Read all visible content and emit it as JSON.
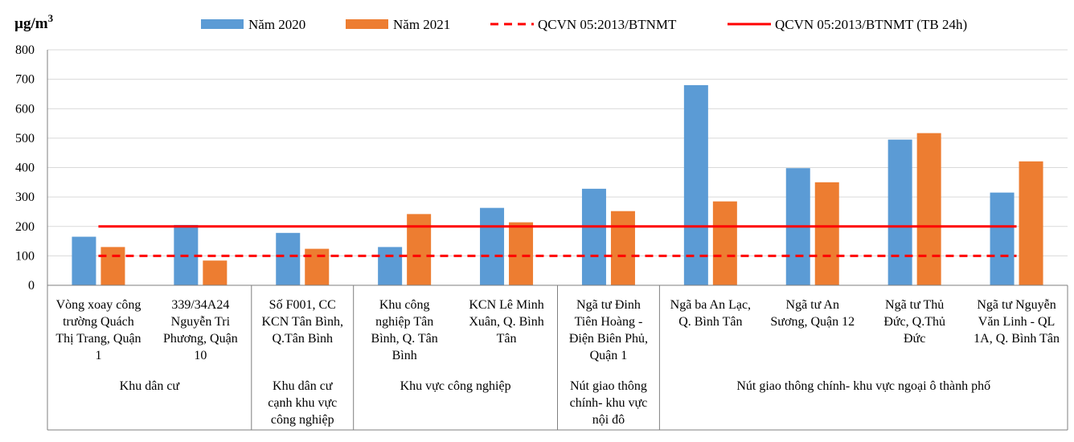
{
  "chart_data": {
    "type": "bar",
    "unit_label": "µg/m",
    "unit_superscript": "3",
    "ylim": [
      0,
      800
    ],
    "yticks": [
      "0",
      "100",
      "200",
      "300",
      "400",
      "500",
      "600",
      "700",
      "800"
    ],
    "grid": true,
    "legend_position": "top",
    "series": [
      {
        "name": "Năm 2020",
        "color": "#5b9bd5",
        "values": [
          165,
          205,
          178,
          130,
          263,
          328,
          680,
          398,
          495,
          315
        ]
      },
      {
        "name": "Năm 2021",
        "color": "#ed7d31",
        "values": [
          130,
          84,
          124,
          242,
          214,
          252,
          285,
          350,
          517,
          421
        ]
      }
    ],
    "reference_lines": [
      {
        "name": "QCVN 05:2013/BTNMT",
        "value": 100,
        "style": "dashed",
        "color": "#ff0000"
      },
      {
        "name": "QCVN 05:2013/BTNMT  (TB 24h)",
        "value": 200,
        "style": "solid",
        "color": "#ff0000"
      }
    ],
    "categories": [
      [
        "Vòng xoay công",
        "trường Quách",
        "Thị Trang, Quận",
        "1"
      ],
      [
        "339/34A24",
        "Nguyễn  Tri",
        "Phương, Quận",
        "10"
      ],
      [
        "Số F001, CC",
        "KCN Tân Bình,",
        "Q.Tân Bình"
      ],
      [
        "Khu công",
        "nghiệp  Tân",
        "Bình, Q. Tân",
        "Bình"
      ],
      [
        "KCN Lê Minh",
        "Xuân, Q. Bình",
        "Tân"
      ],
      [
        "Ngã tư Đinh",
        "Tiên Hoàng -",
        "Điện Biên Phủ,",
        "Quận 1"
      ],
      [
        "Ngã ba An Lạc,",
        "Q. Bình Tân"
      ],
      [
        "Ngã tư An",
        "Sương, Quận 12"
      ],
      [
        "Ngã tư Thủ",
        "Đức, Q.Thủ",
        "Đức"
      ],
      [
        "Ngã tư Nguyễn",
        "Văn Linh  - QL",
        "1A, Q. Bình Tân"
      ]
    ],
    "groups": [
      {
        "lines": [
          "Khu dân cư"
        ],
        "start": 0,
        "end": 2
      },
      {
        "lines": [
          "Khu dân cư",
          "cạnh khu vực",
          "công nghiệp"
        ],
        "start": 2,
        "end": 3
      },
      {
        "lines": [
          "Khu vực công nghiệp"
        ],
        "start": 3,
        "end": 5
      },
      {
        "lines": [
          "Nút giao thông",
          "chính- khu vực",
          "nội đô"
        ],
        "start": 5,
        "end": 6
      },
      {
        "lines": [
          "Nút giao thông chính- khu vực ngoại ô thành phố"
        ],
        "start": 6,
        "end": 10
      }
    ]
  }
}
